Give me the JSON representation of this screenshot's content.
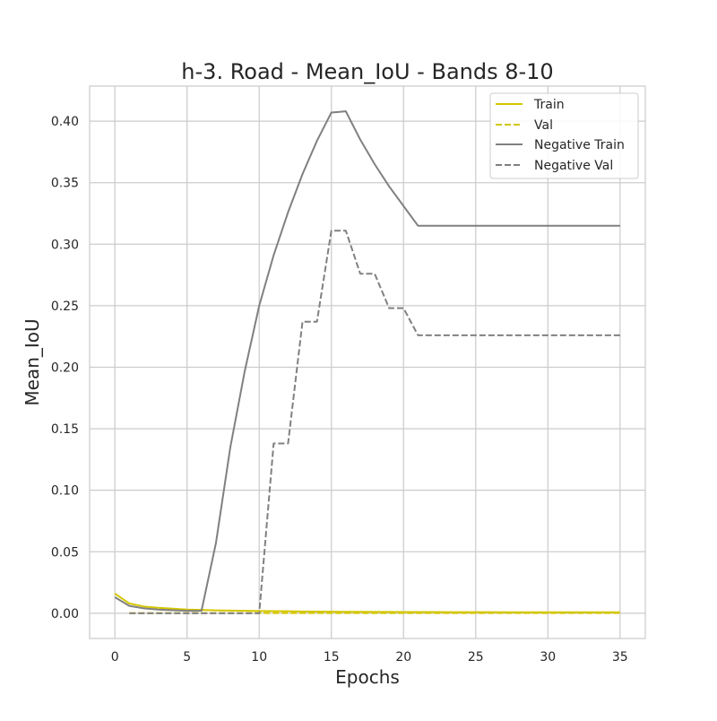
{
  "chart_data": {
    "type": "line",
    "title": "h-3. Road - Mean_IoU - Bands 8-10",
    "xlabel": "Epochs",
    "ylabel": "Mean_IoU",
    "xlim": [
      -1.75,
      36.75
    ],
    "ylim": [
      -0.0205,
      0.4285
    ],
    "xticks": [
      0,
      5,
      10,
      15,
      20,
      25,
      30,
      35
    ],
    "yticks": [
      0.0,
      0.05,
      0.1,
      0.15,
      0.2,
      0.25,
      0.3,
      0.35,
      0.4
    ],
    "xtick_labels": [
      "0",
      "5",
      "10",
      "15",
      "20",
      "25",
      "30",
      "35"
    ],
    "ytick_labels": [
      "0.00",
      "0.05",
      "0.10",
      "0.15",
      "0.20",
      "0.25",
      "0.30",
      "0.35",
      "0.40"
    ],
    "grid": true,
    "legend_position": "top-right",
    "series": [
      {
        "name": "Train",
        "color": "#d4c600",
        "dash": "solid",
        "x": [
          0,
          1,
          2,
          3,
          4,
          5,
          6,
          7,
          8,
          9,
          10,
          11,
          12,
          13,
          14,
          15,
          16,
          17,
          18,
          19,
          20,
          21,
          22,
          23,
          24,
          25,
          26,
          27,
          28,
          29,
          30,
          31,
          32,
          33,
          34,
          35
        ],
        "y": [
          0.016,
          0.008,
          0.0055,
          0.0045,
          0.0037,
          0.003,
          0.0027,
          0.0024,
          0.0022,
          0.002,
          0.0018,
          0.0017,
          0.0016,
          0.0015,
          0.0014,
          0.0013,
          0.0012,
          0.0012,
          0.0011,
          0.0011,
          0.001,
          0.001,
          0.001,
          0.0009,
          0.0009,
          0.0009,
          0.0009,
          0.0008,
          0.0008,
          0.0008,
          0.0008,
          0.0008,
          0.0008,
          0.0008,
          0.0008,
          0.0008
        ]
      },
      {
        "name": "Val",
        "color": "#d4c600",
        "dash": "dashed",
        "x": [
          1,
          2,
          3,
          4,
          5,
          6,
          7,
          8,
          9,
          10,
          11,
          12,
          13,
          14,
          15,
          16,
          17,
          18,
          19,
          20,
          21,
          22,
          23,
          24,
          25,
          26,
          27,
          28,
          29,
          30,
          31,
          32,
          33,
          34,
          35
        ],
        "y": [
          0.0002,
          0.0002,
          0.0002,
          0.0002,
          0.0002,
          0.0002,
          0.0002,
          0.0002,
          0.0002,
          0.0002,
          0.0002,
          0.0002,
          0.0002,
          0.0002,
          0.0002,
          0.0002,
          0.0002,
          0.0002,
          0.0002,
          0.0002,
          0.0002,
          0.0002,
          0.0002,
          0.0002,
          0.0002,
          0.0002,
          0.0002,
          0.0002,
          0.0002,
          0.0002,
          0.0002,
          0.0002,
          0.0002,
          0.0002,
          0.0002
        ]
      },
      {
        "name": "Negative Train",
        "color": "#808080",
        "dash": "solid",
        "x": [
          0,
          1,
          2,
          3,
          4,
          5,
          6,
          7,
          8,
          9,
          10,
          11,
          12,
          13,
          14,
          15,
          16,
          17,
          18,
          19,
          20,
          21,
          22,
          23,
          24,
          25,
          26,
          27,
          28,
          29,
          30,
          31,
          32,
          33,
          34,
          35
        ],
        "y": [
          0.013,
          0.006,
          0.004,
          0.003,
          0.0025,
          0.002,
          0.002,
          0.057,
          0.135,
          0.197,
          0.25,
          0.291,
          0.326,
          0.357,
          0.384,
          0.407,
          0.408,
          0.385,
          0.365,
          0.347,
          0.331,
          0.315,
          0.315,
          0.315,
          0.315,
          0.315,
          0.315,
          0.315,
          0.315,
          0.315,
          0.315,
          0.315,
          0.315,
          0.315,
          0.315,
          0.315
        ]
      },
      {
        "name": "Negative Val",
        "color": "#808080",
        "dash": "dashed",
        "x": [
          1,
          2,
          3,
          4,
          5,
          6,
          7,
          8,
          9,
          10,
          11,
          12,
          13,
          14,
          15,
          16,
          17,
          18,
          19,
          20,
          21,
          22,
          23,
          24,
          25,
          26,
          27,
          28,
          29,
          30,
          31,
          32,
          33,
          34,
          35
        ],
        "y": [
          0.0,
          0.0,
          0.0,
          0.0,
          0.0,
          0.0,
          0.0,
          0.0,
          0.0,
          0.0,
          0.138,
          0.138,
          0.237,
          0.237,
          0.311,
          0.311,
          0.276,
          0.276,
          0.248,
          0.248,
          0.226,
          0.226,
          0.226,
          0.226,
          0.226,
          0.226,
          0.226,
          0.226,
          0.226,
          0.226,
          0.226,
          0.226,
          0.226,
          0.226,
          0.226
        ]
      }
    ]
  }
}
